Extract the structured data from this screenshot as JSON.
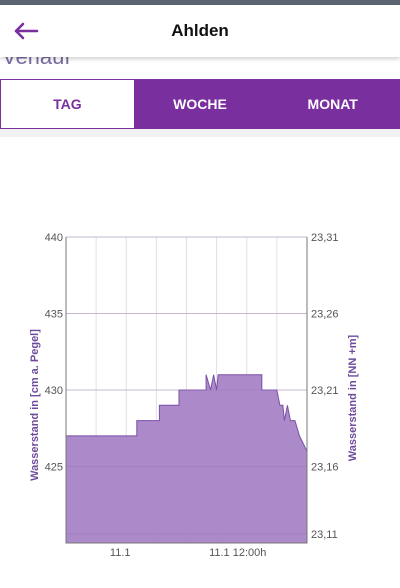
{
  "header": {
    "title": "Ahlden",
    "back_icon": "arrow-left-icon"
  },
  "section_heading": "Verlauf",
  "tabs": [
    {
      "label": "TAG",
      "selected": true
    },
    {
      "label": "WOCHE",
      "selected": false
    },
    {
      "label": "MONAT",
      "selected": false
    }
  ],
  "colors": {
    "accent": "#7a2f9e",
    "area_fill": "#a884c6",
    "area_line": "#7a4fa8",
    "axis_text": "#555555",
    "label_text": "#6e4c9c"
  },
  "chart_data": {
    "type": "area",
    "title": "",
    "ylabel": "Wasserstand in [cm a. Pegel]",
    "ylabel_right": "Wasserstand in [NN +m]",
    "ylim": [
      420,
      440
    ],
    "ylim_right": [
      23.11,
      23.31
    ],
    "yticks": [
      "440",
      "435",
      "430",
      "425"
    ],
    "yticks_right": [
      "23,31",
      "23,26",
      "23,21",
      "23,16",
      "23,11"
    ],
    "xticks": [
      "11.1",
      "11.1 12:00h"
    ],
    "grid": true,
    "series": [
      {
        "x": [
          0,
          4.7,
          4.7,
          6.2,
          6.2,
          7.5,
          7.5,
          9.3,
          9.3,
          9.6,
          9.8,
          10.0,
          10.1,
          10.3,
          10.3,
          13.0,
          13.0,
          14.0,
          14.2,
          14.4,
          14.5,
          14.7,
          14.9,
          15.0,
          15.2,
          15.5,
          16.0
        ],
        "values": [
          427,
          427,
          428,
          428,
          429,
          429,
          430,
          430,
          431,
          430,
          431,
          430,
          431,
          431,
          431,
          431,
          430,
          430,
          429,
          429,
          428,
          429,
          428,
          428,
          428,
          427,
          426
        ]
      }
    ]
  }
}
